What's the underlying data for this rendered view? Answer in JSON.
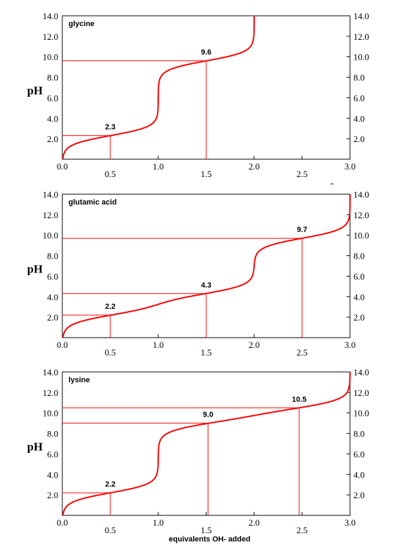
{
  "chart_data": [
    {
      "type": "line",
      "title": "glycine",
      "ylabel": "pH",
      "xlabel": "",
      "xlim": [
        0,
        3
      ],
      "ylim": [
        0,
        14
      ],
      "grid": false,
      "x_ticks_upper": [
        "0.0",
        "1.0",
        "2.0",
        "3.0"
      ],
      "x_ticks_lower": [
        "0.5",
        "1.5",
        "2.5"
      ],
      "y_ticks": [
        "2.0",
        "4.0",
        "6.0",
        "8.0",
        "10.0",
        "12.0",
        "14.0"
      ],
      "pKa": [
        2.3,
        9.6
      ],
      "equivalents_total": 2,
      "markers": [
        {
          "x": 0.5,
          "pH": 2.3,
          "label": "2.3"
        },
        {
          "x": 1.5,
          "pH": 9.6,
          "label": "9.6"
        }
      ],
      "color": "#ff0000"
    },
    {
      "type": "line",
      "title": "glutamic acid",
      "ylabel": "pH",
      "xlabel": "",
      "xlim": [
        0,
        3
      ],
      "ylim": [
        0,
        14
      ],
      "grid": false,
      "x_ticks_upper": [
        "0.0",
        "1.0",
        "2.0",
        "3.0"
      ],
      "x_ticks_lower": [
        "0.5",
        "1.5",
        "2.5"
      ],
      "y_ticks": [
        "2.0",
        "4.0",
        "6.0",
        "8.0",
        "10.0",
        "12.0",
        "14.0"
      ],
      "pKa": [
        2.2,
        4.3,
        9.7
      ],
      "equivalents_total": 3,
      "markers": [
        {
          "x": 0.5,
          "pH": 2.2,
          "label": "2.2"
        },
        {
          "x": 1.5,
          "pH": 4.3,
          "label": "4.3"
        },
        {
          "x": 2.5,
          "pH": 9.7,
          "label": "9.7"
        }
      ],
      "color": "#ff0000"
    },
    {
      "type": "line",
      "title": "lysine",
      "ylabel": "pH",
      "xlabel": "equivalents OH- added",
      "xlim": [
        0,
        3
      ],
      "ylim": [
        0,
        14
      ],
      "grid": false,
      "x_ticks_upper": [
        "0.0",
        "1.0",
        "2.0",
        "3.0"
      ],
      "x_ticks_lower": [
        "0.5",
        "1.5",
        "2.5"
      ],
      "y_ticks": [
        "2.0",
        "4.0",
        "6.0",
        "8.0",
        "10.0",
        "12.0",
        "14.0"
      ],
      "pKa": [
        2.2,
        9.0,
        10.5
      ],
      "equivalents_total": 3,
      "markers": [
        {
          "x": 0.5,
          "pH": 2.2,
          "label": "2.2"
        },
        {
          "x": 1.52,
          "pH": 9.0,
          "label": "9.0"
        },
        {
          "x": 2.47,
          "pH": 10.5,
          "label": "10.5"
        }
      ],
      "color": "#ff0000"
    }
  ]
}
